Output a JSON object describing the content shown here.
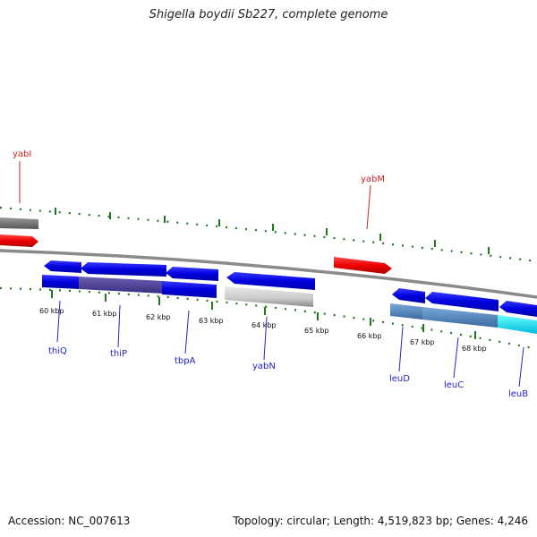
{
  "title": "Shigella boydii Sb227, complete genome",
  "footer": {
    "accession": "Accession: NC_007613",
    "summary": "Topology: circular; Length: 4,519,823 bp; Genes: 4,246"
  },
  "scale_ticks": [
    "60 kbp",
    "61 kbp",
    "62 kbp",
    "63 kbp",
    "64 kbp",
    "65 kbp",
    "66 kbp",
    "67 kbp",
    "68 kbp"
  ],
  "gene_labels": {
    "yabI": "yabI",
    "yabM": "yabM",
    "thiQ": "thiQ",
    "thiP": "thiP",
    "tbpA": "tbpA",
    "yabN": "yabN",
    "leuD": "leuD",
    "leuC": "leuC",
    "leuB": "leuB"
  },
  "colors": {
    "cds_forward": "#0000ee",
    "cds_highlight": "#ee0000",
    "cds_grey": "#999999",
    "tick_green": "#227722",
    "backbone": "#888888",
    "label_blue": "#2222cc",
    "label_red": "#cc2222"
  }
}
